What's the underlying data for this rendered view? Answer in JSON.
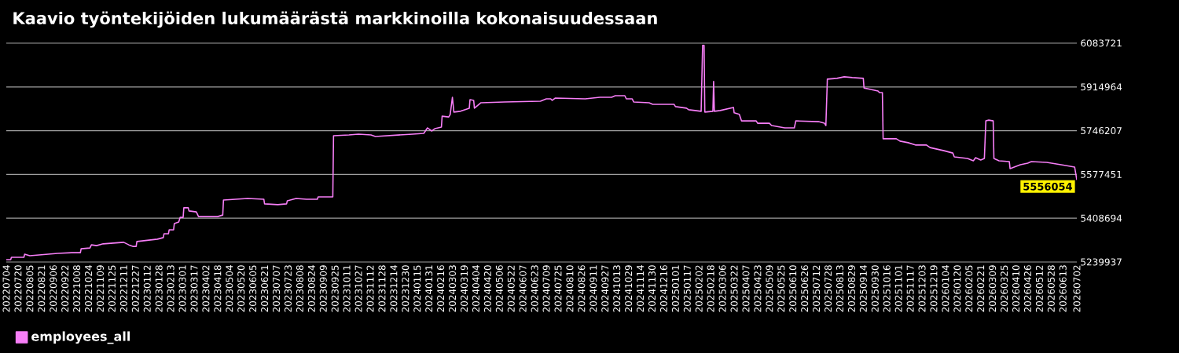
{
  "chart_data": {
    "type": "line",
    "title": "Kaavio työntekijöiden lukumäärästä markkinoilla kokonaisuudessaan",
    "x": [
      "2022-07-04",
      "2022-07-10",
      "2022-07-11",
      "2022-07-28",
      "2022-07-29",
      "2022-08-05",
      "2022-09-12",
      "2022-10-01",
      "2022-10-13",
      "2022-10-14",
      "2022-10-26",
      "2022-10-28",
      "2022-11-04",
      "2022-11-13",
      "2022-12-11",
      "2022-12-18",
      "2022-12-24",
      "2022-12-28",
      "2022-12-29",
      "2023-01-26",
      "2023-02-03",
      "2023-02-04",
      "2023-02-10",
      "2023-02-11",
      "2023-02-17",
      "2023-02-18",
      "2023-02-24",
      "2023-02-26",
      "2023-03-02",
      "2023-03-03",
      "2023-03-09",
      "2023-03-10",
      "2023-03-20",
      "2023-03-23",
      "2023-04-18",
      "2023-04-25",
      "2023-04-26",
      "2023-05-29",
      "2023-06-20",
      "2023-06-21",
      "2023-07-09",
      "2023-07-21",
      "2023-07-22",
      "2023-08-03",
      "2023-08-17",
      "2023-09-01",
      "2023-09-02",
      "2023-09-22",
      "2023-09-23",
      "2023-10-14",
      "2023-10-27",
      "2023-11-13",
      "2023-11-19",
      "2024-01-09",
      "2024-01-24",
      "2024-01-29",
      "2024-02-04",
      "2024-02-08",
      "2024-02-17",
      "2024-02-18",
      "2024-02-27",
      "2024-02-29",
      "2024-03-03",
      "2024-03-05",
      "2024-03-14",
      "2024-03-26",
      "2024-03-27",
      "2024-04-01",
      "2024-04-02",
      "2024-04-11",
      "2024-05-13",
      "2024-07-01",
      "2024-07-09",
      "2024-07-15",
      "2024-07-17",
      "2024-07-21",
      "2024-08-31",
      "2024-09-20",
      "2024-10-06",
      "2024-10-11",
      "2024-10-24",
      "2024-10-26",
      "2024-11-03",
      "2024-11-05",
      "2024-11-26",
      "2024-12-01",
      "2024-12-30",
      "2025-01-01",
      "2025-01-16",
      "2025-01-19",
      "2025-02-05",
      "2025-02-07",
      "2025-02-09",
      "2025-02-10",
      "2025-02-21",
      "2025-02-22",
      "2025-02-23",
      "2025-03-03",
      "2025-03-21",
      "2025-03-22",
      "2025-03-29",
      "2025-04-01",
      "2025-04-21",
      "2025-04-23",
      "2025-05-09",
      "2025-05-12",
      "2025-05-30",
      "2025-06-12",
      "2025-06-14",
      "2025-07-15",
      "2025-07-23",
      "2025-07-25",
      "2025-07-27",
      "2025-08-09",
      "2025-08-19",
      "2025-08-30",
      "2025-09-14",
      "2025-09-15",
      "2025-09-24",
      "2025-10-04",
      "2025-10-06",
      "2025-10-10",
      "2025-10-11",
      "2025-10-29",
      "2025-11-03",
      "2025-11-14",
      "2025-11-24",
      "2025-12-09",
      "2025-12-14",
      "2026-01-02",
      "2026-01-14",
      "2026-01-16",
      "2026-02-03",
      "2026-02-11",
      "2026-02-14",
      "2026-02-21",
      "2026-02-26",
      "2026-02-28",
      "2026-03-04",
      "2026-03-10",
      "2026-03-11",
      "2026-03-18",
      "2026-04-01",
      "2026-04-02",
      "2026-04-16",
      "2026-04-26",
      "2026-05-01",
      "2026-05-22",
      "2026-06-17",
      "2026-06-29",
      "2026-07-02"
    ],
    "series": [
      {
        "name": "employees_all",
        "color": "#f77ef7",
        "values": [
          5249000,
          5249000,
          5258000,
          5258000,
          5270000,
          5264000,
          5273000,
          5276000,
          5276000,
          5291000,
          5294000,
          5306000,
          5303000,
          5310000,
          5316000,
          5306000,
          5300000,
          5300000,
          5319000,
          5328000,
          5334000,
          5349000,
          5349000,
          5364000,
          5364000,
          5388000,
          5394000,
          5412000,
          5412000,
          5449000,
          5449000,
          5437000,
          5433000,
          5415000,
          5415000,
          5421000,
          5479000,
          5485000,
          5482000,
          5464000,
          5461000,
          5464000,
          5476000,
          5485000,
          5482000,
          5482000,
          5491000,
          5491000,
          5727000,
          5730000,
          5733000,
          5730000,
          5724000,
          5733000,
          5736000,
          5757000,
          5745000,
          5754000,
          5760000,
          5802000,
          5799000,
          5809000,
          5875000,
          5818000,
          5821000,
          5833000,
          5866000,
          5863000,
          5833000,
          5854000,
          5857000,
          5860000,
          5869000,
          5869000,
          5863000,
          5872000,
          5869000,
          5875000,
          5875000,
          5881000,
          5881000,
          5869000,
          5869000,
          5857000,
          5854000,
          5848000,
          5848000,
          5839000,
          5833000,
          5827000,
          5821000,
          6075000,
          6075000,
          5818000,
          5821000,
          5936000,
          5821000,
          5824000,
          5836000,
          5815000,
          5809000,
          5784000,
          5784000,
          5775000,
          5775000,
          5766000,
          5757000,
          5757000,
          5784000,
          5781000,
          5775000,
          5766000,
          5945000,
          5948000,
          5954000,
          5951000,
          5948000,
          5911000,
          5905000,
          5899000,
          5893000,
          5893000,
          5715000,
          5715000,
          5706000,
          5700000,
          5691000,
          5691000,
          5681000,
          5669000,
          5660000,
          5645000,
          5639000,
          5630000,
          5642000,
          5633000,
          5639000,
          5784000,
          5787000,
          5784000,
          5639000,
          5630000,
          5627000,
          5600000,
          5615000,
          5621000,
          5627000,
          5624000,
          5612000,
          5606000,
          5556054
        ]
      }
    ],
    "xlim": [
      "2022-07-04",
      "2026-07-02"
    ],
    "xticks": [
      {
        "value": "2022-07-04",
        "label": "20220704"
      },
      {
        "value": "2022-07-20",
        "label": "20220720"
      },
      {
        "value": "2022-08-05",
        "label": "20220805"
      },
      {
        "value": "2022-08-21",
        "label": "20220821"
      },
      {
        "value": "2022-09-06",
        "label": "20220906"
      },
      {
        "value": "2022-09-22",
        "label": "20220922"
      },
      {
        "value": "2022-10-08",
        "label": "20221008"
      },
      {
        "value": "2022-10-24",
        "label": "20221024"
      },
      {
        "value": "2022-11-09",
        "label": "20221109"
      },
      {
        "value": "2022-11-25",
        "label": "20221125"
      },
      {
        "value": "2022-12-11",
        "label": "20221211"
      },
      {
        "value": "2022-12-27",
        "label": "20221227"
      },
      {
        "value": "2023-01-12",
        "label": "20230112"
      },
      {
        "value": "2023-01-28",
        "label": "20230128"
      },
      {
        "value": "2023-02-13",
        "label": "20230213"
      },
      {
        "value": "2023-03-01",
        "label": "20230301"
      },
      {
        "value": "2023-03-17",
        "label": "20230317"
      },
      {
        "value": "2023-04-02",
        "label": "20230402"
      },
      {
        "value": "2023-04-18",
        "label": "20230418"
      },
      {
        "value": "2023-05-04",
        "label": "20230504"
      },
      {
        "value": "2023-05-20",
        "label": "20230520"
      },
      {
        "value": "2023-06-05",
        "label": "20230605"
      },
      {
        "value": "2023-06-21",
        "label": "20230621"
      },
      {
        "value": "2023-07-07",
        "label": "20230707"
      },
      {
        "value": "2023-07-23",
        "label": "20230723"
      },
      {
        "value": "2023-08-08",
        "label": "20230808"
      },
      {
        "value": "2023-08-24",
        "label": "20230824"
      },
      {
        "value": "2023-09-09",
        "label": "20230909"
      },
      {
        "value": "2023-09-25",
        "label": "20230925"
      },
      {
        "value": "2023-10-11",
        "label": "20231011"
      },
      {
        "value": "2023-10-27",
        "label": "20231027"
      },
      {
        "value": "2023-11-12",
        "label": "20231112"
      },
      {
        "value": "2023-11-28",
        "label": "20231128"
      },
      {
        "value": "2023-12-14",
        "label": "20231214"
      },
      {
        "value": "2023-12-30",
        "label": "20231230"
      },
      {
        "value": "2024-01-15",
        "label": "20240115"
      },
      {
        "value": "2024-01-31",
        "label": "20240131"
      },
      {
        "value": "2024-02-16",
        "label": "20240216"
      },
      {
        "value": "2024-03-03",
        "label": "20240303"
      },
      {
        "value": "2024-03-19",
        "label": "20240319"
      },
      {
        "value": "2024-04-04",
        "label": "20240404"
      },
      {
        "value": "2024-04-20",
        "label": "20240420"
      },
      {
        "value": "2024-05-06",
        "label": "20240506"
      },
      {
        "value": "2024-05-22",
        "label": "20240522"
      },
      {
        "value": "2024-06-07",
        "label": "20240607"
      },
      {
        "value": "2024-06-23",
        "label": "20240623"
      },
      {
        "value": "2024-07-09",
        "label": "20240709"
      },
      {
        "value": "2024-07-25",
        "label": "20240725"
      },
      {
        "value": "2024-08-10",
        "label": "20240810"
      },
      {
        "value": "2024-08-26",
        "label": "20240826"
      },
      {
        "value": "2024-09-11",
        "label": "20240911"
      },
      {
        "value": "2024-09-27",
        "label": "20240927"
      },
      {
        "value": "2024-10-13",
        "label": "20241013"
      },
      {
        "value": "2024-10-29",
        "label": "20241029"
      },
      {
        "value": "2024-11-14",
        "label": "20241114"
      },
      {
        "value": "2024-11-30",
        "label": "20241130"
      },
      {
        "value": "2024-12-16",
        "label": "20241216"
      },
      {
        "value": "2025-01-01",
        "label": "20250101"
      },
      {
        "value": "2025-01-17",
        "label": "20250117"
      },
      {
        "value": "2025-02-02",
        "label": "20250202"
      },
      {
        "value": "2025-02-18",
        "label": "20250218"
      },
      {
        "value": "2025-03-06",
        "label": "20250306"
      },
      {
        "value": "2025-03-22",
        "label": "20250322"
      },
      {
        "value": "2025-04-07",
        "label": "20250407"
      },
      {
        "value": "2025-04-23",
        "label": "20250423"
      },
      {
        "value": "2025-05-09",
        "label": "20250509"
      },
      {
        "value": "2025-05-25",
        "label": "20250525"
      },
      {
        "value": "2025-06-10",
        "label": "20250610"
      },
      {
        "value": "2025-06-26",
        "label": "20250626"
      },
      {
        "value": "2025-07-12",
        "label": "20250712"
      },
      {
        "value": "2025-07-28",
        "label": "20250728"
      },
      {
        "value": "2025-08-13",
        "label": "20250813"
      },
      {
        "value": "2025-08-29",
        "label": "20250829"
      },
      {
        "value": "2025-09-14",
        "label": "20250914"
      },
      {
        "value": "2025-09-30",
        "label": "20250930"
      },
      {
        "value": "2025-10-16",
        "label": "20251016"
      },
      {
        "value": "2025-11-01",
        "label": "20251101"
      },
      {
        "value": "2025-11-17",
        "label": "20251117"
      },
      {
        "value": "2025-12-03",
        "label": "20251203"
      },
      {
        "value": "2025-12-19",
        "label": "20251219"
      },
      {
        "value": "2026-01-04",
        "label": "20260104"
      },
      {
        "value": "2026-01-20",
        "label": "20260120"
      },
      {
        "value": "2026-02-05",
        "label": "20260205"
      },
      {
        "value": "2026-02-21",
        "label": "20260221"
      },
      {
        "value": "2026-03-09",
        "label": "20260309"
      },
      {
        "value": "2026-03-25",
        "label": "20260325"
      },
      {
        "value": "2026-04-10",
        "label": "20260410"
      },
      {
        "value": "2026-04-26",
        "label": "20260426"
      },
      {
        "value": "2026-05-12",
        "label": "20260512"
      },
      {
        "value": "2026-05-28",
        "label": "20260528"
      },
      {
        "value": "2026-06-13",
        "label": "20260613"
      },
      {
        "value": "2026-07-02",
        "label": "20260702"
      }
    ],
    "ylim": [
      5239937,
      6083721
    ],
    "yticks": [
      5239937,
      5408694,
      5577451,
      5746207,
      5914964,
      6083721
    ],
    "annotations": [
      {
        "text": "5556054",
        "x": "2026-07-02",
        "y": 5556054
      }
    ],
    "grid": "y",
    "legend": "bottom left"
  }
}
